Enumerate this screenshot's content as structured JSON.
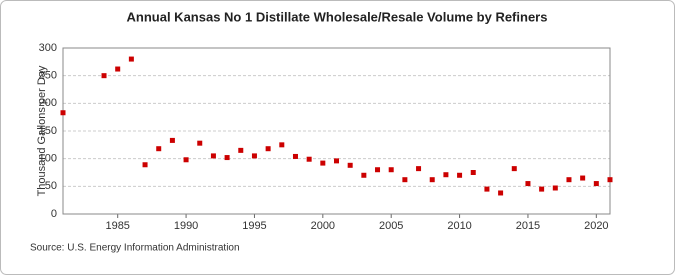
{
  "chart_data": {
    "type": "scatter",
    "title": "Annual Kansas No 1 Distillate Wholesale/Resale Volume by Refiners",
    "ylabel": "Thousand Gallons per Day",
    "source": "Source: U.S. Energy Information Administration",
    "x": [
      1981,
      1984,
      1985,
      1986,
      1987,
      1988,
      1989,
      1990,
      1991,
      1992,
      1993,
      1994,
      1995,
      1996,
      1997,
      1998,
      1999,
      2000,
      2001,
      2002,
      2003,
      2004,
      2005,
      2006,
      2007,
      2008,
      2009,
      2010,
      2011,
      2012,
      2013,
      2014,
      2015,
      2016,
      2017,
      2018,
      2019,
      2020,
      2021
    ],
    "values": [
      183,
      250,
      262,
      280,
      89,
      118,
      133,
      98,
      128,
      105,
      102,
      115,
      105,
      118,
      125,
      104,
      99,
      92,
      96,
      88,
      70,
      80,
      80,
      62,
      82,
      62,
      71,
      70,
      75,
      45,
      38,
      82,
      55,
      45,
      47,
      62,
      65,
      55,
      62
    ],
    "color": "#cc0000",
    "xlim": [
      1981,
      2021
    ],
    "xticks": [
      1985,
      1990,
      1995,
      2000,
      2005,
      2010,
      2015,
      2020
    ],
    "ylim": [
      0,
      300
    ],
    "yticks": [
      0,
      50,
      100,
      150,
      200,
      250,
      300
    ],
    "grid": true
  }
}
